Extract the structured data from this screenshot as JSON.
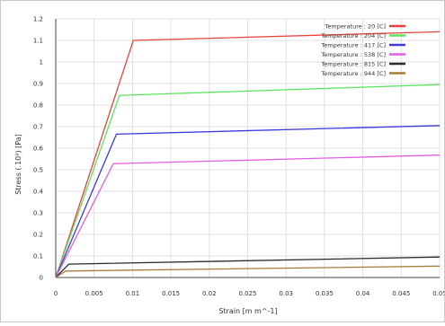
{
  "chart_data": {
    "type": "line",
    "title": "",
    "xlabel": "Strain  [m m^-1]",
    "ylabel": "Stress  (.10⁹)  [Pa]",
    "xlim": [
      0,
      0.05
    ],
    "ylim": [
      0,
      1.2
    ],
    "xticks": [
      "0",
      "0.005",
      "0.01",
      "0.015",
      "0.02",
      "0.025",
      "0.03",
      "0.035",
      "0.04",
      "0.045",
      "0.05"
    ],
    "yticks": [
      "0",
      "0.1",
      "0.2",
      "0.3",
      "0.4",
      "0.5",
      "0.6",
      "0.7",
      "0.8",
      "0.9",
      "1",
      "1.1",
      "1.2"
    ],
    "grid": true,
    "legend_position": "top-right",
    "series": [
      {
        "name": "Temperature : 20 [C]",
        "color": "#e8433a",
        "x": [
          0,
          0.0101,
          0.05
        ],
        "y": [
          0,
          1.1,
          1.14
        ]
      },
      {
        "name": "Temperature : 204 [C]",
        "color": "#5ee45e",
        "x": [
          0,
          0.0083,
          0.05
        ],
        "y": [
          0,
          0.845,
          0.895
        ]
      },
      {
        "name": "Temperature : 417 [C]",
        "color": "#3b3be0",
        "x": [
          0,
          0.0079,
          0.05
        ],
        "y": [
          0,
          0.665,
          0.705
        ]
      },
      {
        "name": "Temperature : 538 [C]",
        "color": "#e45ee4",
        "x": [
          0,
          0.0075,
          0.05
        ],
        "y": [
          0,
          0.528,
          0.568
        ]
      },
      {
        "name": "Temperature : 815 [C]",
        "color": "#2b2b2b",
        "x": [
          0,
          0.0017,
          0.05
        ],
        "y": [
          0,
          0.062,
          0.095
        ]
      },
      {
        "name": "Temperature : 944 [C]",
        "color": "#a67c3a",
        "x": [
          0,
          0.0013,
          0.05
        ],
        "y": [
          0,
          0.03,
          0.053
        ]
      }
    ]
  }
}
